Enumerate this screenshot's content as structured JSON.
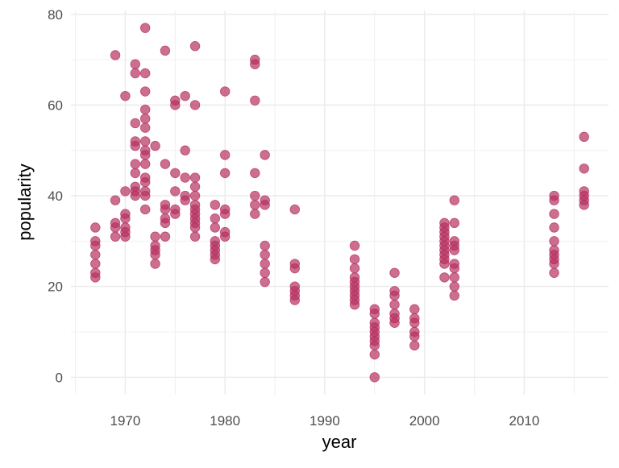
{
  "chart_data": {
    "type": "scatter",
    "title": "",
    "xlabel": "year",
    "ylabel": "popularity",
    "xlim": [
      1964.55,
      2018.45
    ],
    "ylim": [
      -3.85,
      80.85
    ],
    "xticks": [
      1970,
      1980,
      1990,
      2000,
      2010
    ],
    "yticks": [
      0,
      20,
      40,
      60,
      80
    ],
    "grid": true,
    "point_color": "#b5305f",
    "groups": [
      {
        "x": 1967,
        "y": [
          33,
          30,
          29,
          27,
          25,
          23,
          22
        ]
      },
      {
        "x": 1969,
        "y": [
          71,
          39,
          34,
          33,
          31
        ]
      },
      {
        "x": 1970,
        "y": [
          62,
          41,
          36,
          35,
          33,
          32,
          31
        ]
      },
      {
        "x": 1971,
        "y": [
          69,
          67,
          56,
          52,
          51,
          47,
          45,
          42,
          41,
          40
        ]
      },
      {
        "x": 1972,
        "y": [
          77,
          67,
          63,
          59,
          57,
          55,
          52,
          50,
          49,
          47,
          44,
          43,
          41,
          40,
          37
        ]
      },
      {
        "x": 1973,
        "y": [
          51,
          31,
          29,
          28,
          27,
          25
        ]
      },
      {
        "x": 1974,
        "y": [
          72,
          47,
          38,
          37,
          35,
          34,
          31
        ]
      },
      {
        "x": 1975,
        "y": [
          61,
          60,
          45,
          41,
          37,
          36
        ]
      },
      {
        "x": 1976,
        "y": [
          62,
          50,
          44,
          40,
          39
        ]
      },
      {
        "x": 1977,
        "y": [
          73,
          60,
          44,
          42,
          40,
          38,
          37,
          36,
          35,
          34,
          33,
          31
        ]
      },
      {
        "x": 1979,
        "y": [
          38,
          35,
          33,
          30,
          29,
          28,
          27,
          26
        ]
      },
      {
        "x": 1980,
        "y": [
          63,
          49,
          45,
          37,
          36,
          32,
          31
        ]
      },
      {
        "x": 1983,
        "y": [
          70,
          69,
          61,
          45,
          40,
          38,
          36
        ]
      },
      {
        "x": 1984,
        "y": [
          49,
          39,
          38,
          29,
          27,
          25,
          23,
          21
        ]
      },
      {
        "x": 1987,
        "y": [
          37,
          25,
          24,
          20,
          19,
          18,
          17
        ]
      },
      {
        "x": 1993,
        "y": [
          29,
          26,
          24,
          22,
          21,
          20,
          19,
          18,
          17,
          16
        ]
      },
      {
        "x": 1995,
        "y": [
          15,
          14,
          12,
          11,
          10,
          9,
          8,
          7,
          5,
          0
        ]
      },
      {
        "x": 1997,
        "y": [
          23,
          19,
          18,
          16,
          14,
          13,
          12
        ]
      },
      {
        "x": 1999,
        "y": [
          15,
          13,
          12,
          10,
          9,
          7
        ]
      },
      {
        "x": 2002,
        "y": [
          34,
          33,
          32,
          31,
          30,
          29,
          28,
          27,
          26,
          25,
          22
        ]
      },
      {
        "x": 2003,
        "y": [
          39,
          34,
          30,
          29,
          28,
          25,
          24,
          22,
          20,
          18
        ]
      },
      {
        "x": 2013,
        "y": [
          40,
          39,
          36,
          33,
          30,
          28,
          27,
          26,
          25,
          23
        ]
      },
      {
        "x": 2016,
        "y": [
          53,
          46,
          41,
          40,
          39,
          38
        ]
      }
    ]
  }
}
